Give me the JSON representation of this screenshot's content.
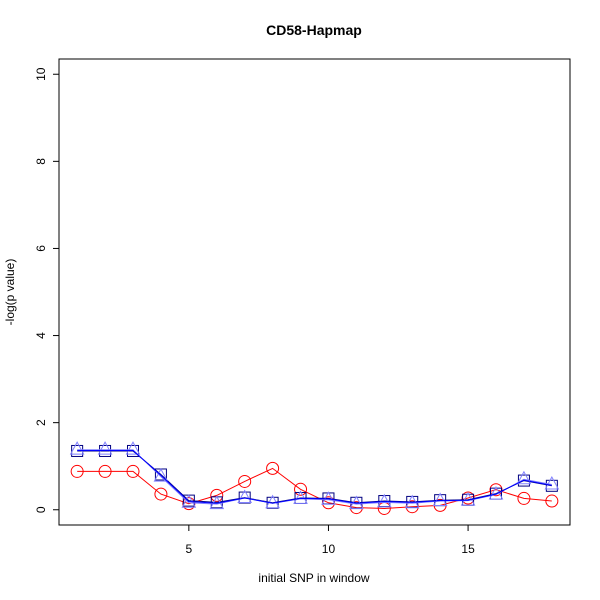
{
  "chart_data": {
    "type": "line",
    "title": "CD58-Hapmap",
    "xlabel": "initial SNP in window",
    "ylabel": "-log(p value)",
    "xlim": [
      0.35,
      18.65
    ],
    "ylim": [
      -0.35,
      10.35
    ],
    "x_ticks": [
      5,
      10,
      15
    ],
    "y_ticks": [
      0,
      2,
      4,
      6,
      8,
      10
    ],
    "x": [
      1,
      2,
      3,
      4,
      5,
      6,
      7,
      8,
      9,
      10,
      11,
      12,
      13,
      14,
      15,
      16,
      17,
      18
    ],
    "series": [
      {
        "marker": "circle",
        "color": "#ff0000",
        "values": [
          0.88,
          0.88,
          0.88,
          0.36,
          0.14,
          0.33,
          0.65,
          0.95,
          0.47,
          0.16,
          0.05,
          0.03,
          0.07,
          0.1,
          0.27,
          0.46,
          0.26,
          0.2
        ]
      },
      {
        "marker": "square",
        "color": "#000080",
        "values": [
          1.35,
          1.35,
          1.35,
          0.81,
          0.21,
          0.17,
          0.28,
          0.16,
          0.27,
          0.26,
          0.16,
          0.2,
          0.18,
          0.22,
          0.23,
          0.37,
          0.67,
          0.55
        ]
      },
      {
        "marker": "triangle",
        "color": "#8080ff",
        "values": [
          1.38,
          1.38,
          1.38,
          0.76,
          0.16,
          0.13,
          0.27,
          0.15,
          0.25,
          0.23,
          0.13,
          0.17,
          0.15,
          0.2,
          0.21,
          0.35,
          0.7,
          0.58
        ]
      },
      {
        "marker": "none",
        "color": "#0000ff",
        "values": [
          1.36,
          1.36,
          1.36,
          0.79,
          0.19,
          0.15,
          0.27,
          0.15,
          0.26,
          0.25,
          0.15,
          0.19,
          0.17,
          0.21,
          0.22,
          0.36,
          0.68,
          0.56
        ]
      }
    ]
  }
}
